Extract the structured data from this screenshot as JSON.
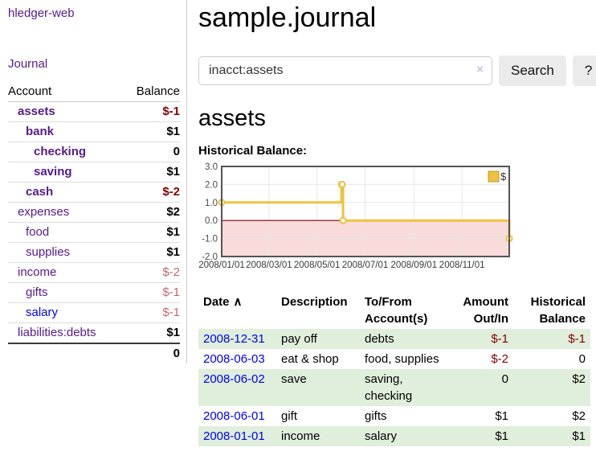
{
  "app": {
    "brand": "hledger-web"
  },
  "sidebar": {
    "journal_label": "Journal",
    "table": {
      "headers": [
        "Account",
        "Balance"
      ],
      "rows": [
        {
          "account": "assets",
          "depth": 1,
          "in_query": true,
          "link_color": "purple",
          "balance": "$-1",
          "balance_class": "neg-strong"
        },
        {
          "account": "bank",
          "depth": 2,
          "in_query": true,
          "link_color": "purple",
          "balance": "$1",
          "balance_class": "pos"
        },
        {
          "account": "checking",
          "depth": 3,
          "in_query": true,
          "link_color": "purple",
          "balance": "0",
          "balance_class": "pos"
        },
        {
          "account": "saving",
          "depth": 3,
          "in_query": true,
          "link_color": "purple",
          "balance": "$1",
          "balance_class": "pos"
        },
        {
          "account": "cash",
          "depth": 2,
          "in_query": true,
          "link_color": "purple",
          "balance": "$-2",
          "balance_class": "neg-strong"
        },
        {
          "account": "expenses",
          "depth": 1,
          "in_query": false,
          "link_color": "purple",
          "balance": "$2",
          "balance_class": "pos"
        },
        {
          "account": "food",
          "depth": 2,
          "in_query": false,
          "link_color": "purple",
          "balance": "$1",
          "balance_class": "pos"
        },
        {
          "account": "supplies",
          "depth": 2,
          "in_query": false,
          "link_color": "purple",
          "balance": "$1",
          "balance_class": "pos"
        },
        {
          "account": "income",
          "depth": 1,
          "in_query": false,
          "link_color": "purple",
          "balance": "$-2",
          "balance_class": "neg-soft"
        },
        {
          "account": "gifts",
          "depth": 2,
          "in_query": false,
          "link_color": "purple",
          "balance": "$-1",
          "balance_class": "neg-soft"
        },
        {
          "account": "salary",
          "depth": 2,
          "in_query": false,
          "link_color": "blue",
          "balance": "$-1",
          "balance_class": "neg-soft"
        },
        {
          "account": "liabilities:debts",
          "depth": 1,
          "in_query": false,
          "link_color": "purple",
          "balance": "$1",
          "balance_class": "pos"
        }
      ],
      "total": "0"
    }
  },
  "header": {
    "title": "sample.journal"
  },
  "search": {
    "value": "inacct:assets",
    "clear_icon": "×",
    "button_label": "Search",
    "help_label": "?"
  },
  "account_page": {
    "heading": "assets",
    "chart_label": "Historical Balance:"
  },
  "chart_data": {
    "type": "line",
    "step": true,
    "title": "Historical Balance",
    "x": [
      "2008-01-01",
      "2008-06-01",
      "2008-06-02",
      "2008-06-03",
      "2008-12-31"
    ],
    "series": [
      {
        "name": "$",
        "values": [
          1,
          2,
          2,
          0,
          -1
        ]
      }
    ],
    "xlim": [
      "2008-01-01",
      "2008-12-31"
    ],
    "ylim": [
      -2,
      3
    ],
    "y_ticks": [
      {
        "v": 3,
        "label": "3.0"
      },
      {
        "v": 2,
        "label": "2.0"
      },
      {
        "v": 1,
        "label": "1.0"
      },
      {
        "v": 0,
        "label": "0.0"
      },
      {
        "v": -1,
        "label": "-1.0"
      },
      {
        "v": -2,
        "label": "-2.0"
      }
    ],
    "x_ticks": [
      {
        "v": "2008-01-01",
        "label": "2008/01/01"
      },
      {
        "v": "2008-03-01",
        "label": "2008/03/01"
      },
      {
        "v": "2008-05-01",
        "label": "2008/05/01"
      },
      {
        "v": "2008-07-01",
        "label": "2008/07/01"
      },
      {
        "v": "2008-09-01",
        "label": "2008/09/01"
      },
      {
        "v": "2008-11-01",
        "label": "2008/11/01"
      }
    ],
    "legend": {
      "label": "$",
      "position": "top-right"
    },
    "grid": true,
    "colors": {
      "line": "#edc240",
      "marker_fill": "#ffffff",
      "negative_region": "#f9dbdb",
      "zero_line": "#7d0000",
      "border": "#545454",
      "gridline": "#e7e7e7",
      "tick_text": "#4a4a4a",
      "legend_border": "#b89b2e"
    }
  },
  "register": {
    "headers": {
      "date": "Date",
      "sort_icon": "∧",
      "description": "Description",
      "account_lines": [
        "To/From",
        "Account(s)"
      ],
      "amount_lines": [
        "Amount",
        "Out/In"
      ],
      "balance_lines": [
        "Historical",
        "Balance"
      ]
    },
    "rows": [
      {
        "date": "2008-12-31",
        "description": "pay off",
        "accounts": [
          "debts"
        ],
        "amount": "$-1",
        "amount_neg": true,
        "balance": "$-1",
        "balance_neg": true,
        "shaded": true
      },
      {
        "date": "2008-06-03",
        "description": "eat & shop",
        "accounts": [
          "food, supplies"
        ],
        "amount": "$-2",
        "amount_neg": true,
        "balance": "0",
        "balance_neg": false,
        "shaded": false
      },
      {
        "date": "2008-06-02",
        "description": "save",
        "accounts": [
          "saving,",
          "checking"
        ],
        "amount": "0",
        "amount_neg": false,
        "balance": "$2",
        "balance_neg": false,
        "shaded": true
      },
      {
        "date": "2008-06-01",
        "description": "gift",
        "accounts": [
          "gifts"
        ],
        "amount": "$1",
        "amount_neg": false,
        "balance": "$2",
        "balance_neg": false,
        "shaded": false
      },
      {
        "date": "2008-01-01",
        "description": "income",
        "accounts": [
          "salary"
        ],
        "amount": "$1",
        "amount_neg": false,
        "balance": "$1",
        "balance_neg": false,
        "shaded": true
      }
    ]
  }
}
